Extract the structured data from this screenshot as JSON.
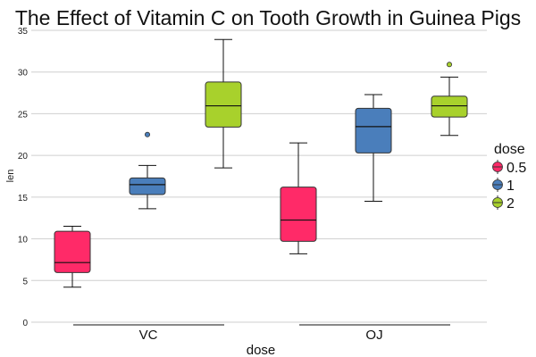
{
  "chart_data": {
    "type": "box",
    "title": "The Effect of Vitamin C on Tooth Growth in Guinea Pigs",
    "xlabel": "dose",
    "ylabel": "len",
    "ylim": [
      0,
      35
    ],
    "yticks": [
      0,
      5,
      10,
      15,
      20,
      25,
      30,
      35
    ],
    "grid": "horizontal",
    "categories": [
      "VC",
      "OJ"
    ],
    "legend": {
      "title": "dose",
      "placement": "right",
      "entries": [
        "0.5",
        "1",
        "2"
      ]
    },
    "colors": {
      "0.5": "#FF2A68",
      "1": "#4A7EBB",
      "2": "#A8D12C"
    },
    "boxes": [
      {
        "group": "VC",
        "dose": "0.5",
        "min": 4.2,
        "q1": 5.95,
        "median": 7.15,
        "q3": 10.9,
        "max": 11.5,
        "outliers": []
      },
      {
        "group": "VC",
        "dose": "1",
        "min": 13.6,
        "q1": 15.3,
        "median": 16.5,
        "q3": 17.3,
        "max": 18.8,
        "outliers": [
          22.5
        ]
      },
      {
        "group": "VC",
        "dose": "2",
        "min": 18.5,
        "q1": 23.4,
        "median": 25.95,
        "q3": 28.8,
        "max": 33.9,
        "outliers": []
      },
      {
        "group": "OJ",
        "dose": "0.5",
        "min": 8.2,
        "q1": 9.7,
        "median": 12.25,
        "q3": 16.2,
        "max": 21.5,
        "outliers": []
      },
      {
        "group": "OJ",
        "dose": "1",
        "min": 14.5,
        "q1": 20.3,
        "median": 23.45,
        "q3": 25.65,
        "max": 27.3,
        "outliers": []
      },
      {
        "group": "OJ",
        "dose": "2",
        "min": 22.4,
        "q1": 24.6,
        "median": 25.95,
        "q3": 27.1,
        "max": 29.4,
        "outliers": [
          30.9
        ]
      }
    ]
  }
}
